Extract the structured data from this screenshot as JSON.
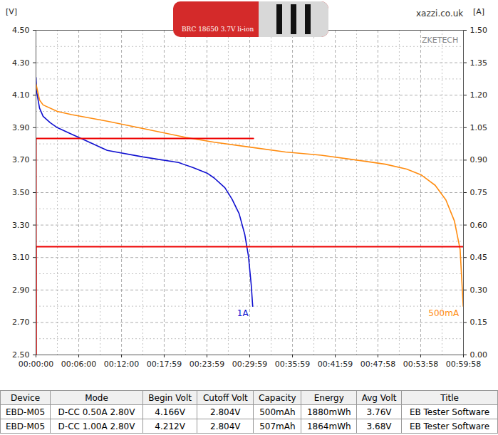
{
  "chart_data": {
    "type": "line",
    "y_label": "[V]",
    "y2_label": "[A]",
    "annotations": [
      "xazzi.co.uk",
      "ZKETECH",
      "BRC 18650 3.7V li-ion"
    ],
    "xlim": [
      0,
      3598
    ],
    "xticks": [
      {
        "value": 0,
        "label": "00:00:00"
      },
      {
        "value": 360,
        "label": "00:06:00"
      },
      {
        "value": 720,
        "label": "00:12:00"
      },
      {
        "value": 1079,
        "label": "00:17:59"
      },
      {
        "value": 1439,
        "label": "00:23:59"
      },
      {
        "value": 1799,
        "label": "00:29:59"
      },
      {
        "value": 2159,
        "label": "00:35:59"
      },
      {
        "value": 2519,
        "label": "00:41:59"
      },
      {
        "value": 2878,
        "label": "00:47:58"
      },
      {
        "value": 3238,
        "label": "00:53:58"
      },
      {
        "value": 3598,
        "label": "00:59:58"
      }
    ],
    "ylim": [
      2.5,
      4.5
    ],
    "yticks": [
      {
        "value": 2.5,
        "label": "2.50"
      },
      {
        "value": 2.7,
        "label": "2.70"
      },
      {
        "value": 2.9,
        "label": "2.90"
      },
      {
        "value": 3.1,
        "label": "3.10"
      },
      {
        "value": 3.3,
        "label": "3.30"
      },
      {
        "value": 3.5,
        "label": "3.50"
      },
      {
        "value": 3.7,
        "label": "3.70"
      },
      {
        "value": 3.9,
        "label": "3.90"
      },
      {
        "value": 4.1,
        "label": "4.10"
      },
      {
        "value": 4.3,
        "label": "4.30"
      },
      {
        "value": 4.5,
        "label": "4.50"
      }
    ],
    "y2lim": [
      0,
      1.5
    ],
    "y2ticks": [
      {
        "value": 0,
        "label": "0.00"
      },
      {
        "value": 0.15,
        "label": "0.15"
      },
      {
        "value": 0.3,
        "label": "0.30"
      },
      {
        "value": 0.45,
        "label": "0.45"
      },
      {
        "value": 0.6,
        "label": "0.60"
      },
      {
        "value": 0.75,
        "label": "0.75"
      },
      {
        "value": 0.9,
        "label": "0.90"
      },
      {
        "value": 1.05,
        "label": "1.05"
      },
      {
        "value": 1.2,
        "label": "1.20"
      },
      {
        "value": 1.35,
        "label": "1.35"
      },
      {
        "value": 1.5,
        "label": "1.50"
      }
    ],
    "grid": true,
    "series": [
      {
        "name": "1A",
        "color": "#1010d0",
        "x": [
          0,
          6,
          30,
          60,
          120,
          180,
          300,
          390,
          600,
          900,
          1200,
          1320,
          1440,
          1500,
          1590,
          1650,
          1710,
          1758,
          1788,
          1812,
          1824
        ],
        "values": [
          4.21,
          4.12,
          4.02,
          3.97,
          3.93,
          3.9,
          3.86,
          3.83,
          3.76,
          3.72,
          3.685,
          3.655,
          3.62,
          3.59,
          3.53,
          3.46,
          3.37,
          3.24,
          3.11,
          2.93,
          2.8
        ]
      },
      {
        "name": "500mA",
        "color": "#ff8c10",
        "x": [
          0,
          30,
          60,
          180,
          300,
          600,
          900,
          1260,
          1500,
          1800,
          2100,
          2400,
          2700,
          2940,
          3120,
          3240,
          3360,
          3450,
          3522,
          3570,
          3596
        ],
        "values": [
          4.17,
          4.07,
          4.04,
          4.0,
          3.98,
          3.94,
          3.895,
          3.84,
          3.81,
          3.78,
          3.75,
          3.73,
          3.7,
          3.675,
          3.645,
          3.61,
          3.545,
          3.455,
          3.325,
          3.15,
          2.8
        ]
      },
      {
        "name": "1A",
        "color": "#ee0000",
        "axis": "y2",
        "x": [
          0,
          0,
          1830
        ],
        "values": [
          0,
          1.0,
          1.0
        ]
      },
      {
        "name": "500mA",
        "color": "#ee0000",
        "axis": "y2",
        "x": [
          0,
          0,
          3598
        ],
        "values": [
          0,
          0.5,
          0.5
        ]
      }
    ]
  },
  "table": {
    "columns": [
      "Device",
      "Mode",
      "Begin Volt",
      "Cutoff Volt",
      "Capacity",
      "Energy",
      "Avg Volt",
      "Title"
    ],
    "rows": [
      [
        "EBD-M05",
        "D-CC 0.50A 2.80V",
        "4.166V",
        "2.804V",
        "500mAh",
        "1880mWh",
        "3.76V",
        "EB Tester Software"
      ],
      [
        "EBD-M05",
        "D-CC 1.00A 2.80V",
        "4.212V",
        "2.804V",
        "507mAh",
        "1864mWh",
        "3.68V",
        "EB Tester Software"
      ]
    ]
  }
}
